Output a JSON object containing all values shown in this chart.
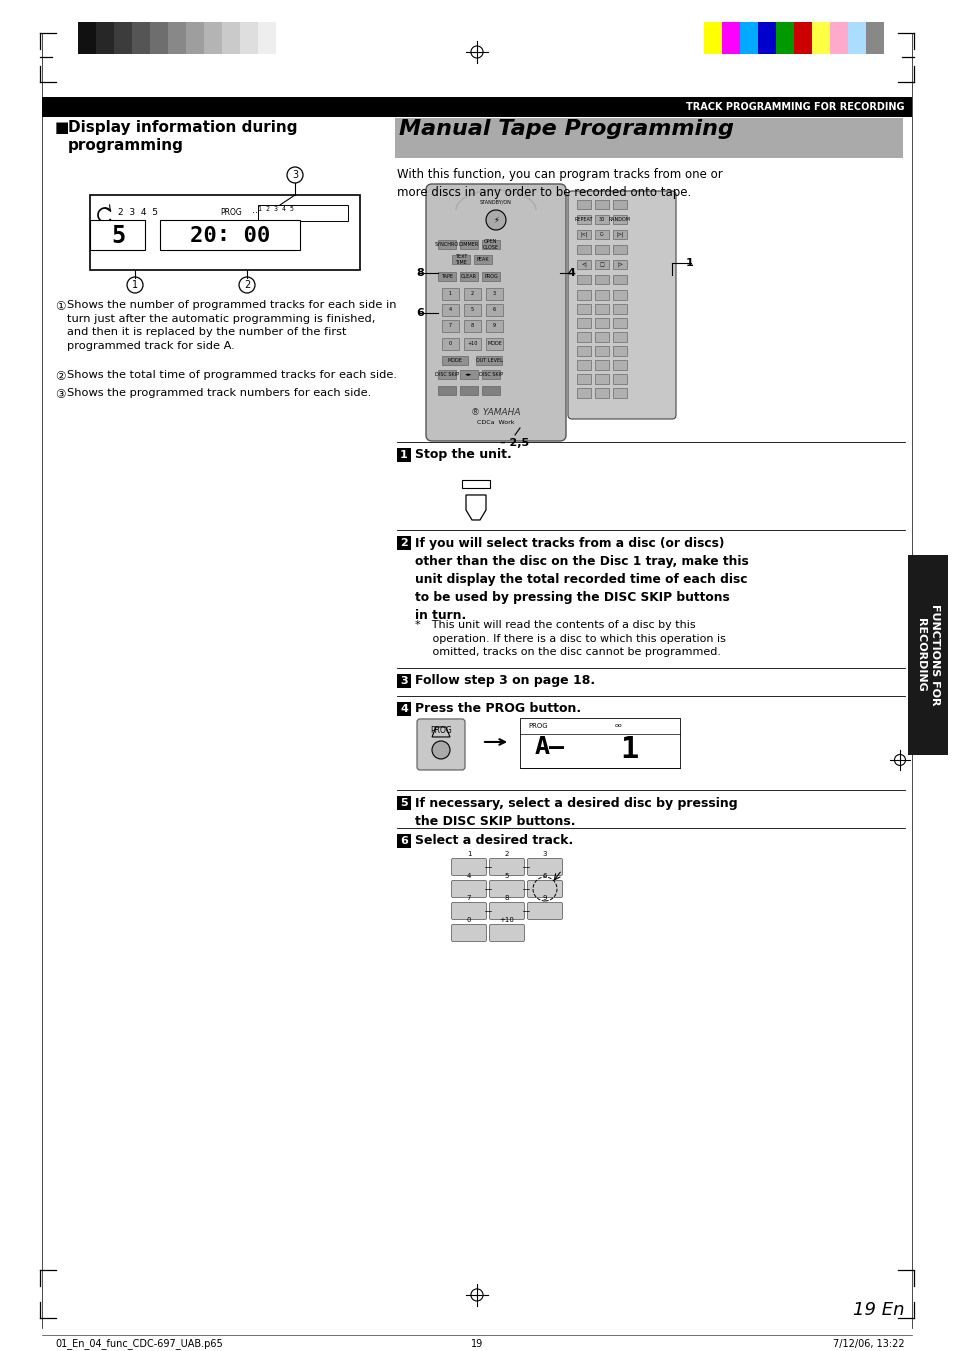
{
  "page_width": 9.54,
  "page_height": 13.51,
  "bg_color": "#ffffff",
  "color_bars_left": [
    "#111111",
    "#272727",
    "#3c3c3c",
    "#555555",
    "#6e6e6e",
    "#888888",
    "#9e9e9e",
    "#b4b4b4",
    "#cacaca",
    "#dedede",
    "#eeeeee",
    "#ffffff"
  ],
  "color_bars_right": [
    "#ffff00",
    "#ff00ff",
    "#00aaff",
    "#0000cc",
    "#009900",
    "#cc0000",
    "#ffff44",
    "#ffaacc",
    "#aaddff",
    "#888888"
  ],
  "header_text": "TRACK PROGRAMMING FOR RECORDING",
  "section_left_title": "■ Display information during\n   programming",
  "main_title": "Manual Tape Programming",
  "intro_text": "With this function, you can program tracks from one or\nmore discs in any order to be recorded onto tape.",
  "left_desc1_circ": "①",
  "left_desc1": " Shows the number of programmed tracks for each side in\n   turn just after the automatic programming is finished,\n   and then it is replaced by the number of the first\n   programmed track for side A.",
  "left_desc2_circ": "②",
  "left_desc2": " Shows the total time of programmed tracks for each side.",
  "left_desc3_circ": "③",
  "left_desc3": " Shows the programmed track numbers for each side.",
  "step1_text": "Stop the unit.",
  "step2_bold": "If you will select tracks from a disc (or discs)\nother than the disc on the Disc 1 tray, make this\nunit display the total recorded time of each disc\nto be used by pressing the DISC SKIP buttons\nin turn.",
  "step2_note": "* This unit will read the contents of a disc by this\n     operation. If there is a disc to which this operation is\n     omitted, tracks on the disc cannot be programmed.",
  "step3_text": "Follow step 3 on page 18.",
  "step4_text": "Press the PROG button.",
  "step5_text": "If necessary, select a desired disc by pressing\nthe DISC SKIP buttons.",
  "step6_text": "Select a desired track.",
  "sidebar_text": "FUNCTIONS FOR\nRECORDING",
  "sidebar_bg": "#1a1a1a",
  "footer_left": "01_En_04_func_CDC-697_UAB.p65",
  "footer_page": "19",
  "footer_right": "7/12/06, 13:22",
  "page_num": "19 En"
}
